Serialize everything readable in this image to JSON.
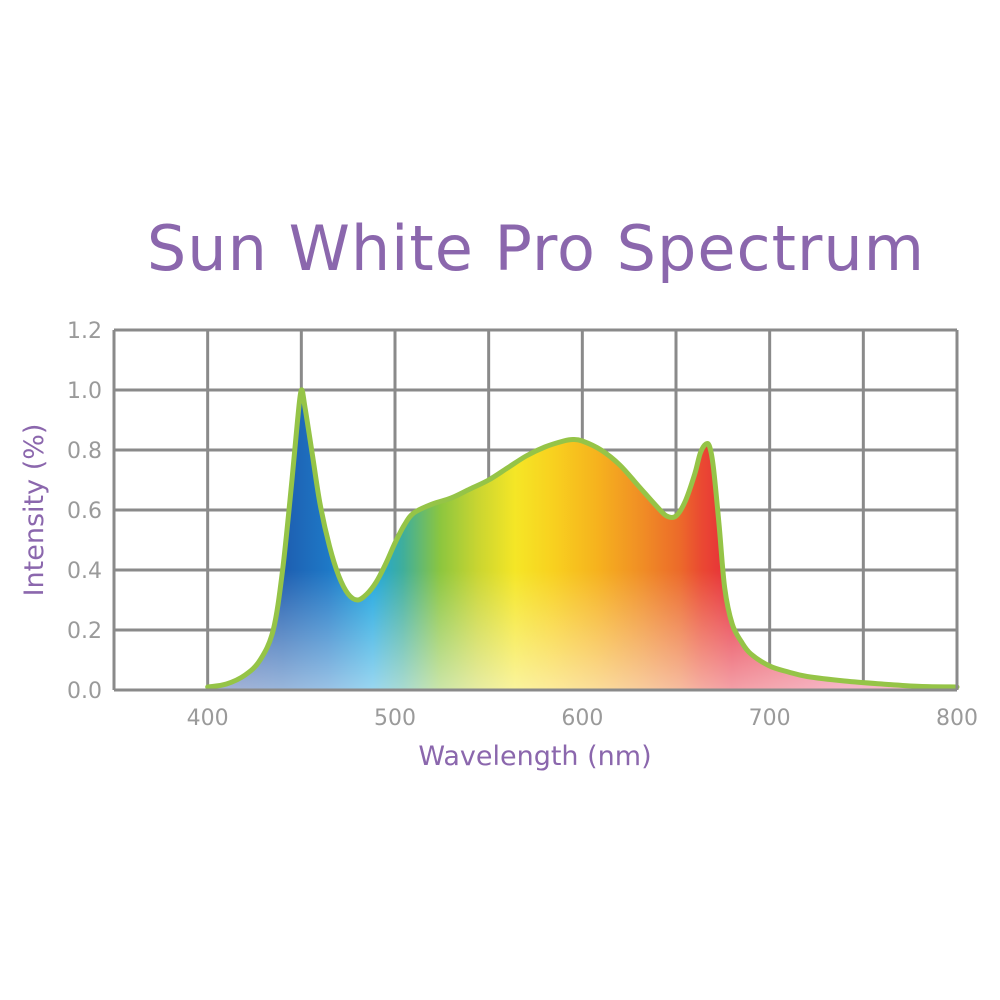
{
  "title": "Sun White Pro Spectrum",
  "chart_data": {
    "type": "area",
    "title": "Sun White Pro Spectrum",
    "xlabel": "Wavelength (nm)",
    "ylabel": "Intensity (%)",
    "xlim": [
      350,
      800
    ],
    "ylim": [
      0,
      1.2
    ],
    "x_ticks": [
      400,
      500,
      600,
      700,
      800
    ],
    "x_tick_labels": [
      "400",
      "500",
      "600",
      "700",
      "800"
    ],
    "y_ticks": [
      0,
      0.2,
      0.4,
      0.6,
      0.8,
      1.0,
      1.2
    ],
    "y_tick_labels": [
      "0.0",
      "0.2",
      "0.4",
      "0.6",
      "0.8",
      "1.0",
      "1.2"
    ],
    "grid": true,
    "legend": "none",
    "colors": {
      "title": "#8b67ad",
      "curve_outline": "#95c447",
      "grid": "#8a8a8a",
      "tick_text": "#9a9a9a"
    },
    "series": [
      {
        "x": [
          400,
          410,
          420,
          428,
          435,
          440,
          445,
          448,
          450,
          452,
          456,
          460,
          465,
          470,
          475,
          480,
          485,
          490,
          495,
          500,
          505,
          510,
          520,
          530,
          540,
          550,
          560,
          570,
          580,
          590,
          595,
          600,
          610,
          620,
          630,
          640,
          645,
          650,
          655,
          660,
          663,
          666,
          668,
          670,
          673,
          676,
          680,
          685,
          690,
          700,
          710,
          720,
          740,
          760,
          780,
          800
        ],
        "y": [
          0.01,
          0.02,
          0.05,
          0.1,
          0.2,
          0.4,
          0.7,
          0.9,
          1.0,
          0.94,
          0.78,
          0.62,
          0.48,
          0.38,
          0.32,
          0.3,
          0.32,
          0.36,
          0.42,
          0.49,
          0.55,
          0.59,
          0.62,
          0.64,
          0.67,
          0.7,
          0.74,
          0.78,
          0.81,
          0.83,
          0.835,
          0.83,
          0.8,
          0.75,
          0.68,
          0.61,
          0.58,
          0.58,
          0.63,
          0.72,
          0.79,
          0.82,
          0.81,
          0.74,
          0.55,
          0.34,
          0.22,
          0.16,
          0.12,
          0.08,
          0.06,
          0.045,
          0.03,
          0.02,
          0.012,
          0.01
        ]
      }
    ]
  }
}
